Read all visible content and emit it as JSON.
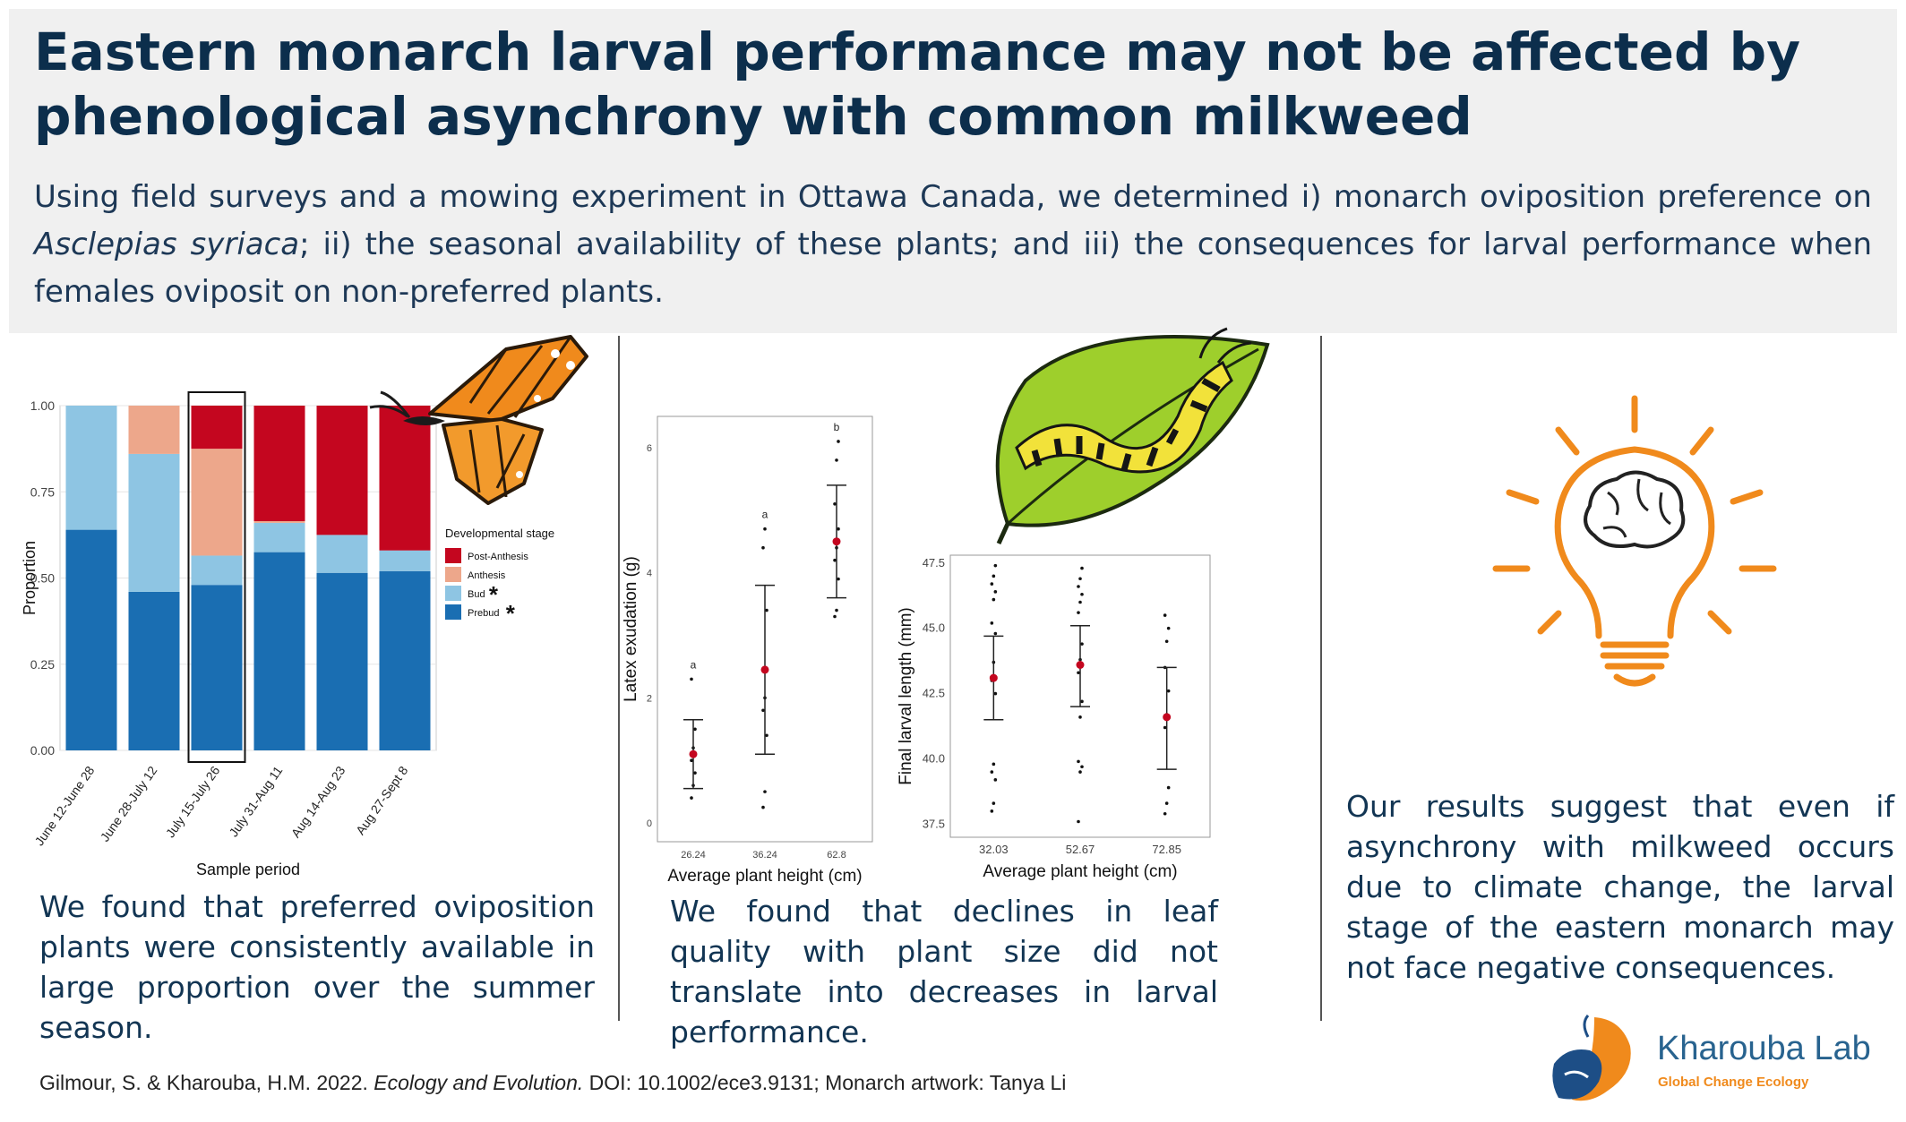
{
  "title_lines": [
    "Eastern monarch larval performance may not be affected by",
    "phenological asynchrony with common milkweed"
  ],
  "intro": {
    "part1": "Using field surveys and a mowing experiment in Ottawa Canada, we determined i) monarch oviposition preference on ",
    "species": "Asclepias syriaca",
    "part2": "; ii) the seasonal availability of these plants; and iii) the consequences for larval performance when females oviposit on non-preferred plants."
  },
  "findings": {
    "left": "We found that preferred oviposition plants were consistently available in large proportion over the summer season.",
    "middle": "We found that declines in leaf quality with plant size did not translate into decreases in larval performance.",
    "right": "Our results suggest that even if asynchrony with milkweed occurs due to climate change, the larval stage of the eastern monarch may not face negative consequences."
  },
  "citation": {
    "authors": "Gilmour, S. & Kharouba, H.M. 2022. ",
    "journal": "Ecology and Evolution.",
    "rest": " DOI: 10.1002/ece3.9131; Monarch artwork: Tanya Li"
  },
  "lab": {
    "name": "Kharouba Lab",
    "subtitle": "Global Change Ecology"
  },
  "colors": {
    "post_anthesis": "#c4061f",
    "anthesis": "#eda78b",
    "bud": "#8ec5e3",
    "prebud": "#1a6eb2",
    "accent_orange": "#f08a1c",
    "navy": "#0c2e4c"
  },
  "icons": [
    "monarch-butterfly-icon",
    "caterpillar-on-leaf-icon",
    "lightbulb-brain-icon",
    "kharouba-lab-logo-icon"
  ],
  "chart_data": [
    {
      "type": "bar",
      "stacked": true,
      "xlabel": "Sample period",
      "ylabel": "Proportion",
      "ylim": [
        0,
        1
      ],
      "yticks": [
        "0.00",
        "0.25",
        "0.50",
        "0.75",
        "1.00"
      ],
      "categories": [
        "June 12-June 28",
        "June 28-July 12",
        "July 15-July 26",
        "July 31-Aug 11",
        "Aug 14-Aug 23",
        "Aug 27-Sept 8"
      ],
      "highlighted_category": "July 15-July 26",
      "legend_title": "Developmental stage",
      "legend_placement": "right",
      "legend_marks": {
        "Bud": "*",
        "Prebud": "*"
      },
      "series": [
        {
          "name": "Prebud",
          "color": "#1a6eb2",
          "values": [
            0.64,
            0.46,
            0.48,
            0.575,
            0.515,
            0.52
          ]
        },
        {
          "name": "Bud",
          "color": "#8ec5e3",
          "values": [
            0.36,
            0.4,
            0.085,
            0.085,
            0.11,
            0.06
          ]
        },
        {
          "name": "Anthesis",
          "color": "#eda78b",
          "values": [
            0,
            0.14,
            0.31,
            0.005,
            0,
            0
          ]
        },
        {
          "name": "Post-Anthesis",
          "color": "#c4061f",
          "values": [
            0,
            0,
            0.125,
            0.335,
            0.375,
            0.42
          ]
        }
      ]
    },
    {
      "type": "scatter",
      "xlabel": "Average plant height (cm)",
      "ylabel": "Latex exudation (g)",
      "ylim": [
        -0.3,
        6.5
      ],
      "yticks": [
        "0",
        "2",
        "4",
        "6"
      ],
      "categories": [
        "26.24",
        "36.24",
        "62.8"
      ],
      "means": [
        1.1,
        2.45,
        4.5
      ],
      "ci_low": [
        0.55,
        1.1,
        3.6
      ],
      "ci_high": [
        1.65,
        3.8,
        5.4
      ],
      "letters": [
        "a",
        "a",
        "b"
      ],
      "points": [
        [
          0.4,
          0.6,
          0.8,
          1.0,
          1.2,
          1.5,
          2.3
        ],
        [
          0.25,
          0.5,
          1.4,
          1.8,
          2.0,
          3.4,
          4.4,
          4.7
        ],
        [
          3.3,
          3.4,
          3.9,
          4.2,
          4.4,
          4.7,
          5.1,
          5.8,
          6.1
        ]
      ]
    },
    {
      "type": "scatter",
      "xlabel": "Average plant height (cm)",
      "ylabel": "Final larval length (mm)",
      "ylim": [
        37.0,
        47.8
      ],
      "yticks": [
        "37.5",
        "40.0",
        "42.5",
        "45.0",
        "47.5"
      ],
      "categories": [
        "32.03",
        "52.67",
        "72.85"
      ],
      "means": [
        43.1,
        43.6,
        41.6
      ],
      "ci_low": [
        41.5,
        42.0,
        39.6
      ],
      "ci_high": [
        44.7,
        45.1,
        43.5
      ],
      "points": [
        [
          38.0,
          38.3,
          39.2,
          39.5,
          39.8,
          42.5,
          43.0,
          43.7,
          44.8,
          45.2,
          46.1,
          46.4,
          46.7,
          47.0,
          47.4
        ],
        [
          37.6,
          39.5,
          39.7,
          39.9,
          41.6,
          42.2,
          43.3,
          43.8,
          44.4,
          45.6,
          46.0,
          46.3,
          46.6,
          46.9,
          47.3
        ],
        [
          37.9,
          38.3,
          38.9,
          41.2,
          41.7,
          42.6,
          43.5,
          44.5,
          45.0,
          45.5
        ]
      ]
    }
  ]
}
